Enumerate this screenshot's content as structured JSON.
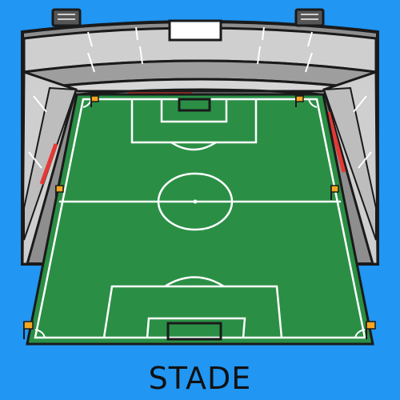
{
  "caption": "STADE",
  "colors": {
    "background": "#2196f3",
    "pitch": "#2a8f45",
    "stand_light": "#cfcfcf",
    "stand_dark": "#8e8e8e",
    "outline": "#1a1a1a",
    "lines": "#ffffff",
    "accent_red": "#e53935",
    "flag": "#f5a623",
    "floodlight": "#555555"
  },
  "icons": [
    "floodlight-left-icon",
    "floodlight-right-icon",
    "scoreboard-icon",
    "corner-flag-icon",
    "halfway-flag-icon"
  ]
}
